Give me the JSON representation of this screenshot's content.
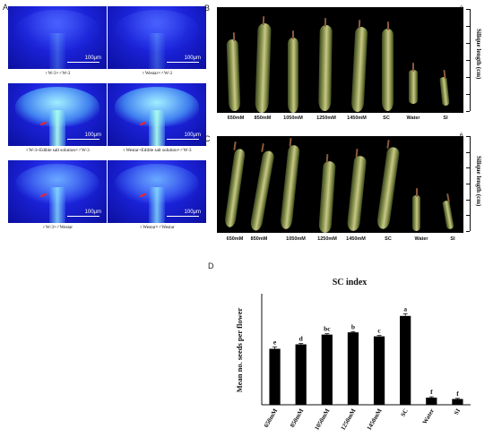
{
  "panels": {
    "a": {
      "letter": "A",
      "images": [
        {
          "caption": "♀W-3×♂W-3",
          "scale": "100μm",
          "style": "dim",
          "arrow": false
        },
        {
          "caption": "♀Westar×♂W-3",
          "scale": "100μm",
          "style": "dim",
          "arrow": false
        },
        {
          "caption": "♀W-3+Edible salt solution×♂W-3",
          "scale": "100μm",
          "style": "bright",
          "arrow": true
        },
        {
          "caption": "♀Westar+Edible salt solution×♂W-3",
          "scale": "100μm",
          "style": "bright",
          "arrow": true
        },
        {
          "caption": "♀W-3×♂Westar",
          "scale": "100μm",
          "style": "normal",
          "arrow": true
        },
        {
          "caption": "♀Westar×♂Westar",
          "scale": "100μm",
          "style": "normal",
          "arrow": true
        }
      ]
    },
    "b": {
      "letter": "B",
      "labels": [
        "650mM",
        "850mM",
        "1050mM",
        "1250mM",
        "1450mM",
        "SC",
        "Water",
        "SI"
      ],
      "ruler_title": "Silique length (cm)",
      "ruler_ticks": [
        "0",
        "1",
        "2",
        "3",
        "4",
        "5",
        "6"
      ]
    },
    "c": {
      "letter": "C",
      "labels": [
        "650mM",
        "850mM",
        "1050mM",
        "1250mM",
        "1450mM",
        "SC",
        "Water",
        "SI"
      ],
      "ruler_title": "Silique length (cm)",
      "ruler_ticks": [
        "0",
        "1",
        "2",
        "3",
        "4",
        "5",
        "6"
      ]
    },
    "d": {
      "letter": "D"
    }
  },
  "chart_data": {
    "type": "bar",
    "title": "SC index",
    "ylabel": "Mean no. seeds per flower",
    "xlabel": "",
    "categories": [
      "650mM",
      "850mM",
      "1050mM",
      "1250mM",
      "1450mM",
      "SC",
      "Water",
      "SI"
    ],
    "values": [
      12.6,
      13.6,
      15.8,
      16.3,
      15.4,
      20.0,
      1.6,
      1.3
    ],
    "errors": [
      0.4,
      0.2,
      0.2,
      0.15,
      0.2,
      0.5,
      0.2,
      0.15
    ],
    "significance": [
      "e",
      "d",
      "bc",
      "b",
      "c",
      "a",
      "f",
      "f"
    ],
    "ylim": [
      0,
      25
    ],
    "grid": false,
    "colors": {
      "bar": "#000000"
    }
  }
}
